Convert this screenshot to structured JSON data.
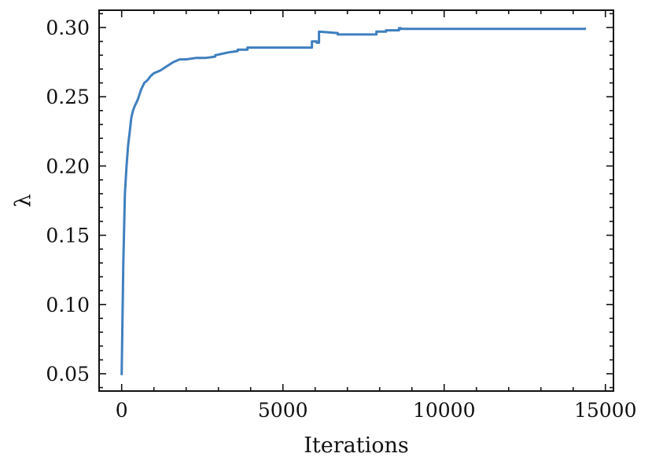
{
  "chart_data": {
    "type": "line",
    "title": "",
    "xlabel": "Iterations",
    "ylabel": "λ",
    "xlim": [
      -700,
      15250
    ],
    "ylim": [
      0.0375,
      0.3125
    ],
    "x_ticks": [
      {
        "value": 0,
        "label": "0"
      },
      {
        "value": 5000,
        "label": "5000"
      },
      {
        "value": 10000,
        "label": "10000"
      },
      {
        "value": 15000,
        "label": "15000"
      }
    ],
    "y_ticks": [
      {
        "value": 0.05,
        "label": "0.05"
      },
      {
        "value": 0.1,
        "label": "0.10"
      },
      {
        "value": 0.15,
        "label": "0.15"
      },
      {
        "value": 0.2,
        "label": "0.20"
      },
      {
        "value": 0.25,
        "label": "0.25"
      },
      {
        "value": 0.3,
        "label": "0.30"
      }
    ],
    "grid": false,
    "series": [
      {
        "color": "#3f7fbf",
        "x": [
          0,
          20,
          50,
          100,
          150,
          200,
          250,
          300,
          350,
          400,
          500,
          600,
          700,
          800,
          900,
          1000,
          1200,
          1400,
          1600,
          1800,
          2000,
          2300,
          2600,
          2900,
          2900,
          3100,
          3300,
          3600,
          3600,
          3900,
          3900,
          4500,
          5000,
          5600,
          5900,
          5900,
          6050,
          6050,
          6120,
          6120,
          6700,
          6700,
          7900,
          7900,
          8200,
          8200,
          8600,
          8600,
          8650,
          8650,
          8800,
          8800,
          14400
        ],
        "y": [
          0.049,
          0.08,
          0.13,
          0.18,
          0.2,
          0.215,
          0.225,
          0.235,
          0.24,
          0.243,
          0.248,
          0.255,
          0.26,
          0.262,
          0.265,
          0.267,
          0.269,
          0.272,
          0.275,
          0.277,
          0.277,
          0.278,
          0.278,
          0.279,
          0.28,
          0.281,
          0.282,
          0.283,
          0.284,
          0.284,
          0.2855,
          0.2855,
          0.2855,
          0.2855,
          0.2855,
          0.29,
          0.29,
          0.289,
          0.289,
          0.297,
          0.296,
          0.295,
          0.295,
          0.297,
          0.297,
          0.298,
          0.298,
          0.2995,
          0.2995,
          0.299,
          0.299,
          0.299,
          0.299
        ]
      }
    ]
  }
}
